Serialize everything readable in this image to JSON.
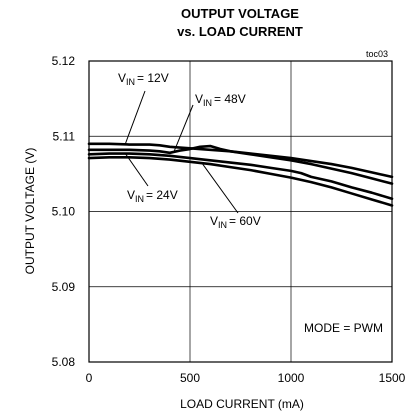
{
  "chart_data": {
    "type": "line",
    "title": [
      "OUTPUT VOLTAGE",
      "vs. LOAD CURRENT"
    ],
    "corner_note": "toc03",
    "xlabel": "LOAD CURRENT (mA)",
    "ylabel": "OUTPUT VOLTAGE (V)",
    "xlim": [
      0,
      1500
    ],
    "ylim": [
      5.08,
      5.12
    ],
    "grid": true,
    "xticks": [
      0,
      500,
      1000,
      1500
    ],
    "xtick_labels": [
      "0",
      "500",
      "1000",
      "1500"
    ],
    "yticks": [
      5.08,
      5.09,
      5.1,
      5.11,
      5.12
    ],
    "ytick_labels": [
      "5.08",
      "5.09",
      "5.10",
      "5.11",
      "5.12"
    ],
    "annotation": "MODE = PWM",
    "series_label_base": "V",
    "series_label_sub": "IN",
    "series": [
      {
        "name": "VIN = 12V",
        "value_text": "= 12V",
        "x": [
          0,
          100,
          200,
          300,
          350,
          400,
          500,
          600,
          700,
          800,
          900,
          1000,
          1100,
          1200,
          1300,
          1400,
          1500
        ],
        "y": [
          5.109,
          5.109,
          5.1089,
          5.1089,
          5.1088,
          5.1086,
          5.1084,
          5.1082,
          5.108,
          5.1077,
          5.1074,
          5.1071,
          5.1067,
          5.1063,
          5.1058,
          5.1052,
          5.1046
        ]
      },
      {
        "name": "VIN = 48V",
        "value_text": "= 48V",
        "x": [
          0,
          100,
          200,
          300,
          350,
          400,
          450,
          500,
          550,
          600,
          650,
          700,
          800,
          900,
          1000,
          1100,
          1200,
          1300,
          1400,
          1500
        ],
        "y": [
          5.1082,
          5.1082,
          5.1082,
          5.1081,
          5.108,
          5.1078,
          5.1081,
          5.1083,
          5.1086,
          5.1087,
          5.1083,
          5.108,
          5.1076,
          5.1072,
          5.1068,
          5.1063,
          5.1057,
          5.1051,
          5.1044,
          5.1037
        ]
      },
      {
        "name": "VIN = 24V",
        "value_text": "= 24V",
        "x": [
          0,
          100,
          200,
          300,
          400,
          500,
          600,
          700,
          800,
          900,
          1000,
          1050,
          1100,
          1150,
          1200,
          1300,
          1400,
          1500
        ],
        "y": [
          5.1076,
          5.1077,
          5.1077,
          5.1076,
          5.1074,
          5.1071,
          5.1068,
          5.1065,
          5.1062,
          5.1058,
          5.1054,
          5.1051,
          5.1046,
          5.1043,
          5.104,
          5.1032,
          5.1025,
          5.1017
        ]
      },
      {
        "name": "VIN = 60V",
        "value_text": "= 60V",
        "x": [
          0,
          100,
          200,
          300,
          400,
          500,
          600,
          700,
          800,
          900,
          1000,
          1100,
          1200,
          1300,
          1400,
          1500
        ],
        "y": [
          5.1071,
          5.1072,
          5.1072,
          5.1071,
          5.1069,
          5.1066,
          5.1063,
          5.1059,
          5.1055,
          5.105,
          5.1045,
          5.1039,
          5.1032,
          5.1024,
          5.1016,
          5.1008
        ]
      }
    ]
  }
}
